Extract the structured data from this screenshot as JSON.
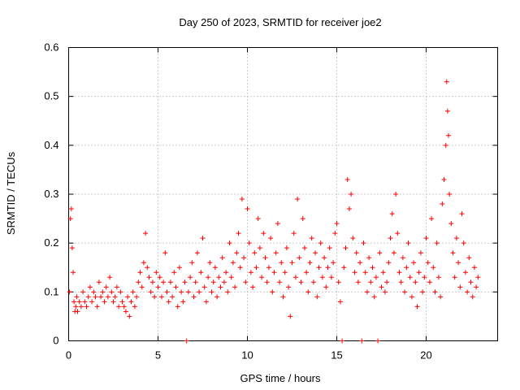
{
  "chart_data": {
    "type": "scatter",
    "title": "Day 250 of 2023, SRMTID for receiver joe2",
    "xlabel": "GPS time / hours",
    "ylabel": "SRMTID / TECUs",
    "xlim": [
      0,
      24
    ],
    "ylim": [
      0,
      0.6
    ],
    "xticks": [
      0,
      5,
      10,
      15,
      20
    ],
    "yticks": [
      0,
      0.1,
      0.2,
      0.3,
      0.4,
      0.5,
      0.6
    ],
    "xtick_labels": [
      "0",
      "5",
      "10",
      "15",
      "20"
    ],
    "ytick_labels": [
      "0",
      "0.1",
      "0.2",
      "0.3",
      "0.4",
      "0.5",
      "0.6"
    ],
    "grid": true,
    "marker": "+",
    "color": "#ff0000",
    "series": [
      {
        "name": "SRMTID",
        "points": [
          [
            0.05,
            0.1
          ],
          [
            0.1,
            0.25
          ],
          [
            0.15,
            0.27
          ],
          [
            0.2,
            0.19
          ],
          [
            0.25,
            0.14
          ],
          [
            0.3,
            0.08
          ],
          [
            0.35,
            0.06
          ],
          [
            0.4,
            0.07
          ],
          [
            0.45,
            0.09
          ],
          [
            0.5,
            0.06
          ],
          [
            0.6,
            0.08
          ],
          [
            0.7,
            0.07
          ],
          [
            0.8,
            0.1
          ],
          [
            0.9,
            0.08
          ],
          [
            1.0,
            0.07
          ],
          [
            1.1,
            0.09
          ],
          [
            1.2,
            0.11
          ],
          [
            1.3,
            0.08
          ],
          [
            1.4,
            0.1
          ],
          [
            1.5,
            0.09
          ],
          [
            1.6,
            0.07
          ],
          [
            1.7,
            0.12
          ],
          [
            1.8,
            0.09
          ],
          [
            1.9,
            0.1
          ],
          [
            2.0,
            0.08
          ],
          [
            2.1,
            0.11
          ],
          [
            2.2,
            0.09
          ],
          [
            2.3,
            0.13
          ],
          [
            2.4,
            0.1
          ],
          [
            2.5,
            0.08
          ],
          [
            2.6,
            0.09
          ],
          [
            2.7,
            0.11
          ],
          [
            2.8,
            0.07
          ],
          [
            2.9,
            0.1
          ],
          [
            3.0,
            0.08
          ],
          [
            3.1,
            0.07
          ],
          [
            3.2,
            0.06
          ],
          [
            3.3,
            0.09
          ],
          [
            3.4,
            0.05
          ],
          [
            3.5,
            0.08
          ],
          [
            3.6,
            0.1
          ],
          [
            3.7,
            0.07
          ],
          [
            3.8,
            0.09
          ],
          [
            3.9,
            0.12
          ],
          [
            4.0,
            0.14
          ],
          [
            4.1,
            0.11
          ],
          [
            4.2,
            0.16
          ],
          [
            4.3,
            0.22
          ],
          [
            4.4,
            0.15
          ],
          [
            4.5,
            0.13
          ],
          [
            4.6,
            0.1
          ],
          [
            4.7,
            0.12
          ],
          [
            4.8,
            0.09
          ],
          [
            4.9,
            0.14
          ],
          [
            5.0,
            0.11
          ],
          [
            5.1,
            0.13
          ],
          [
            5.2,
            0.09
          ],
          [
            5.3,
            0.12
          ],
          [
            5.4,
            0.18
          ],
          [
            5.5,
            0.1
          ],
          [
            5.6,
            0.08
          ],
          [
            5.7,
            0.12
          ],
          [
            5.8,
            0.09
          ],
          [
            5.9,
            0.14
          ],
          [
            6.0,
            0.11
          ],
          [
            6.1,
            0.07
          ],
          [
            6.2,
            0.15
          ],
          [
            6.3,
            0.1
          ],
          [
            6.4,
            0.08
          ],
          [
            6.5,
            0.12
          ],
          [
            6.6,
            0.0
          ],
          [
            6.7,
            0.1
          ],
          [
            6.8,
            0.13
          ],
          [
            6.9,
            0.16
          ],
          [
            7.0,
            0.09
          ],
          [
            7.1,
            0.12
          ],
          [
            7.2,
            0.18
          ],
          [
            7.3,
            0.1
          ],
          [
            7.4,
            0.14
          ],
          [
            7.5,
            0.21
          ],
          [
            7.6,
            0.11
          ],
          [
            7.7,
            0.08
          ],
          [
            7.8,
            0.13
          ],
          [
            7.9,
            0.16
          ],
          [
            8.0,
            0.1
          ],
          [
            8.1,
            0.12
          ],
          [
            8.2,
            0.15
          ],
          [
            8.3,
            0.09
          ],
          [
            8.4,
            0.13
          ],
          [
            8.5,
            0.11
          ],
          [
            8.6,
            0.17
          ],
          [
            8.7,
            0.12
          ],
          [
            8.8,
            0.14
          ],
          [
            8.9,
            0.1
          ],
          [
            9.0,
            0.2
          ],
          [
            9.1,
            0.13
          ],
          [
            9.2,
            0.16
          ],
          [
            9.3,
            0.11
          ],
          [
            9.4,
            0.18
          ],
          [
            9.5,
            0.22
          ],
          [
            9.6,
            0.15
          ],
          [
            9.7,
            0.29
          ],
          [
            9.8,
            0.17
          ],
          [
            9.9,
            0.12
          ],
          [
            10.0,
            0.27
          ],
          [
            10.1,
            0.2
          ],
          [
            10.2,
            0.14
          ],
          [
            10.3,
            0.11
          ],
          [
            10.4,
            0.18
          ],
          [
            10.5,
            0.15
          ],
          [
            10.6,
            0.25
          ],
          [
            10.7,
            0.19
          ],
          [
            10.8,
            0.13
          ],
          [
            10.9,
            0.22
          ],
          [
            11.0,
            0.17
          ],
          [
            11.1,
            0.12
          ],
          [
            11.2,
            0.15
          ],
          [
            11.3,
            0.21
          ],
          [
            11.4,
            0.1
          ],
          [
            11.5,
            0.14
          ],
          [
            11.6,
            0.18
          ],
          [
            11.7,
            0.24
          ],
          [
            11.8,
            0.12
          ],
          [
            11.9,
            0.16
          ],
          [
            12.0,
            0.09
          ],
          [
            12.1,
            0.14
          ],
          [
            12.2,
            0.19
          ],
          [
            12.3,
            0.11
          ],
          [
            12.4,
            0.05
          ],
          [
            12.5,
            0.16
          ],
          [
            12.6,
            0.22
          ],
          [
            12.7,
            0.13
          ],
          [
            12.8,
            0.29
          ],
          [
            12.9,
            0.17
          ],
          [
            13.0,
            0.12
          ],
          [
            13.1,
            0.25
          ],
          [
            13.2,
            0.19
          ],
          [
            13.3,
            0.14
          ],
          [
            13.4,
            0.1
          ],
          [
            13.5,
            0.16
          ],
          [
            13.6,
            0.21
          ],
          [
            13.7,
            0.12
          ],
          [
            13.8,
            0.18
          ],
          [
            13.9,
            0.09
          ],
          [
            14.0,
            0.15
          ],
          [
            14.1,
            0.2
          ],
          [
            14.2,
            0.13
          ],
          [
            14.3,
            0.17
          ],
          [
            14.4,
            0.11
          ],
          [
            14.5,
            0.15
          ],
          [
            14.6,
            0.19
          ],
          [
            14.7,
            0.13
          ],
          [
            14.8,
            0.16
          ],
          [
            14.9,
            0.22
          ],
          [
            15.0,
            0.24
          ],
          [
            15.1,
            0.12
          ],
          [
            15.2,
            0.08
          ],
          [
            15.3,
            0.0
          ],
          [
            15.4,
            0.15
          ],
          [
            15.5,
            0.19
          ],
          [
            15.6,
            0.33
          ],
          [
            15.7,
            0.27
          ],
          [
            15.8,
            0.3
          ],
          [
            15.9,
            0.21
          ],
          [
            16.0,
            0.14
          ],
          [
            16.1,
            0.18
          ],
          [
            16.2,
            0.12
          ],
          [
            16.3,
            0.16
          ],
          [
            16.4,
            0.0
          ],
          [
            16.5,
            0.2
          ],
          [
            16.6,
            0.14
          ],
          [
            16.7,
            0.1
          ],
          [
            16.8,
            0.17
          ],
          [
            16.9,
            0.12
          ],
          [
            17.0,
            0.15
          ],
          [
            17.1,
            0.09
          ],
          [
            17.2,
            0.13
          ],
          [
            17.3,
            0.0
          ],
          [
            17.4,
            0.18
          ],
          [
            17.5,
            0.11
          ],
          [
            17.6,
            0.14
          ],
          [
            17.7,
            0.1
          ],
          [
            17.8,
            0.12
          ],
          [
            17.9,
            0.16
          ],
          [
            18.0,
            0.21
          ],
          [
            18.1,
            0.26
          ],
          [
            18.2,
            0.18
          ],
          [
            18.3,
            0.3
          ],
          [
            18.4,
            0.22
          ],
          [
            18.5,
            0.14
          ],
          [
            18.6,
            0.12
          ],
          [
            18.7,
            0.17
          ],
          [
            18.8,
            0.1
          ],
          [
            18.9,
            0.15
          ],
          [
            19.0,
            0.2
          ],
          [
            19.1,
            0.13
          ],
          [
            19.2,
            0.09
          ],
          [
            19.3,
            0.16
          ],
          [
            19.4,
            0.12
          ],
          [
            19.5,
            0.07
          ],
          [
            19.6,
            0.14
          ],
          [
            19.7,
            0.18
          ],
          [
            19.8,
            0.1
          ],
          [
            19.9,
            0.13
          ],
          [
            20.0,
            0.21
          ],
          [
            20.1,
            0.16
          ],
          [
            20.2,
            0.12
          ],
          [
            20.3,
            0.25
          ],
          [
            20.4,
            0.15
          ],
          [
            20.5,
            0.1
          ],
          [
            20.6,
            0.2
          ],
          [
            20.7,
            0.13
          ],
          [
            20.8,
            0.09
          ],
          [
            20.9,
            0.28
          ],
          [
            21.0,
            0.33
          ],
          [
            21.1,
            0.4
          ],
          [
            21.15,
            0.53
          ],
          [
            21.2,
            0.47
          ],
          [
            21.25,
            0.42
          ],
          [
            21.3,
            0.3
          ],
          [
            21.4,
            0.24
          ],
          [
            21.5,
            0.18
          ],
          [
            21.6,
            0.13
          ],
          [
            21.7,
            0.21
          ],
          [
            21.8,
            0.16
          ],
          [
            21.9,
            0.11
          ],
          [
            22.0,
            0.26
          ],
          [
            22.1,
            0.2
          ],
          [
            22.2,
            0.14
          ],
          [
            22.3,
            0.1
          ],
          [
            22.4,
            0.17
          ],
          [
            22.5,
            0.12
          ],
          [
            22.6,
            0.09
          ],
          [
            22.7,
            0.15
          ],
          [
            22.8,
            0.11
          ],
          [
            22.9,
            0.13
          ]
        ]
      }
    ]
  }
}
